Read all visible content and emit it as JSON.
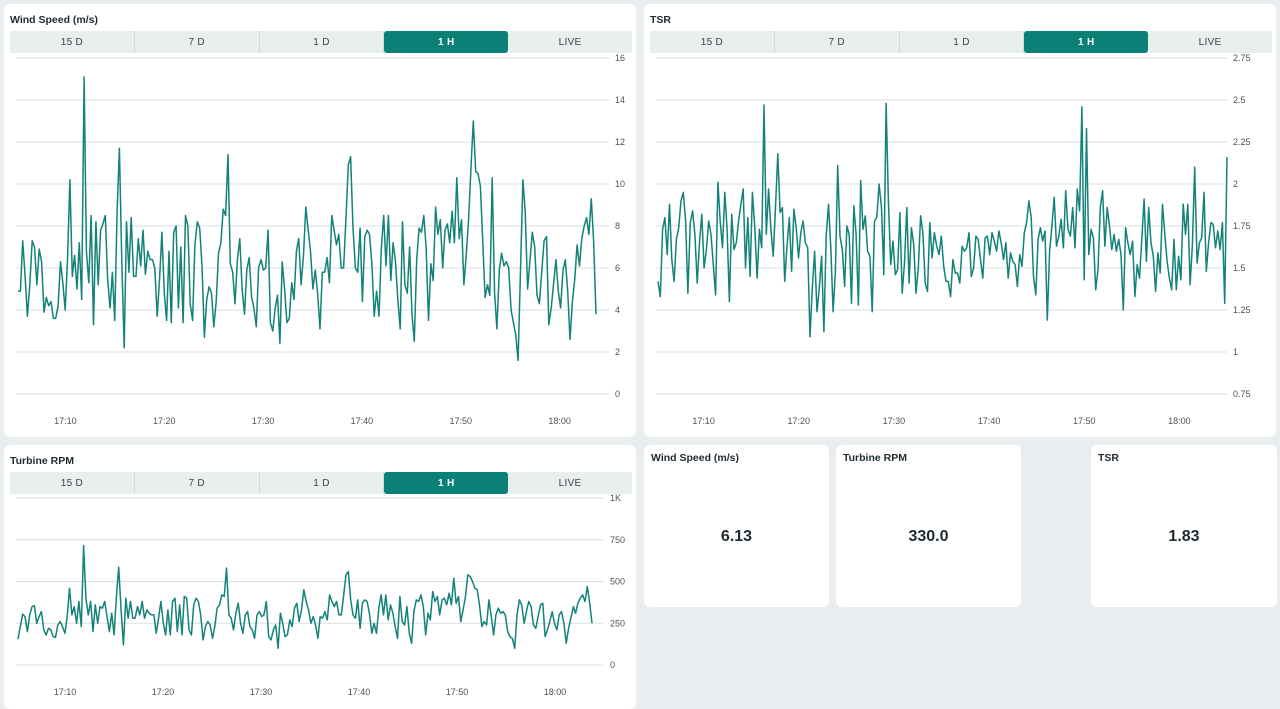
{
  "colors": {
    "accent": "#0a8077",
    "line": "#138278",
    "grid": "#d9dfe1",
    "background": "#e8eef0"
  },
  "tabs": [
    "15 D",
    "7 D",
    "1 D",
    "1 H",
    "LIVE"
  ],
  "active_tab": "1 H",
  "charts": {
    "wind": {
      "title": "Wind Speed (m/s)"
    },
    "tsr": {
      "title": "TSR"
    },
    "rpm": {
      "title": "Turbine RPM"
    }
  },
  "metrics": [
    {
      "title": "Wind Speed (m/s)",
      "value": "6.13"
    },
    {
      "title": "Turbine RPM",
      "value": "330.0"
    },
    {
      "title": "TSR",
      "value": "1.83"
    }
  ],
  "chart_data": [
    {
      "type": "line",
      "title": "Wind Speed (m/s)",
      "x_ticks": [
        "17:10",
        "17:20",
        "17:30",
        "17:40",
        "17:50",
        "18:00"
      ],
      "x_range_minutes": [
        1025,
        1085
      ],
      "y_ticks": [
        "0",
        "2",
        "4",
        "6",
        "8",
        "10",
        "12",
        "14",
        "16"
      ],
      "ylim": [
        0,
        16
      ],
      "grid": true,
      "series": [
        {
          "values": [
            4.9,
            4.9,
            7.3,
            5.6,
            3.7,
            5.2,
            7.3,
            7.0,
            5.2,
            6.9,
            6.3,
            3.9,
            4.6,
            4.2,
            4.4,
            3.6,
            3.6,
            4.2,
            6.3,
            5.3,
            4.0,
            6.4,
            10.2,
            5.6,
            6.6,
            5.0,
            7.2,
            4.5,
            15.1,
            6.8,
            5.3,
            8.5,
            3.3,
            8.2,
            5.2,
            7.8,
            8.1,
            8.5,
            5.5,
            4.1,
            5.8,
            3.5,
            8.7,
            11.7,
            6.3,
            2.2,
            8.2,
            5.8,
            8.4,
            5.6,
            5.6,
            7.4,
            6.1,
            7.8,
            5.7,
            6.8,
            6.4,
            6.4,
            6.0,
            3.7,
            5.5,
            7.7,
            4.8,
            3.5,
            6.8,
            3.4,
            7.7,
            8.0,
            4.1,
            7.0,
            3.4,
            8.5,
            8.0,
            4.3,
            3.5,
            7.1,
            8.2,
            7.9,
            6.1,
            2.7,
            4.5,
            5.1,
            4.8,
            3.2,
            4.4,
            6.7,
            7.2,
            8.8,
            8.5,
            11.4,
            6.2,
            5.8,
            4.3,
            6.4,
            7.4,
            5.0,
            3.8,
            5.9,
            6.5,
            4.6,
            4.1,
            3.2,
            6.0,
            6.4,
            5.9,
            6.0,
            7.8,
            3.4,
            3.0,
            4.1,
            4.7,
            2.4,
            6.3,
            5.0,
            3.4,
            3.6,
            5.3,
            4.5,
            6.8,
            7.4,
            5.2,
            6.6,
            8.9,
            7.8,
            6.8,
            5.0,
            5.9,
            4.8,
            3.1,
            5.8,
            5.8,
            6.5,
            5.3,
            8.5,
            7.8,
            7.1,
            7.6,
            6.0,
            6.0,
            8.3,
            10.9,
            11.3,
            7.9,
            6.0,
            5.8,
            7.9,
            4.4,
            7.5,
            7.8,
            7.6,
            6.2,
            3.7,
            4.9,
            3.7,
            6.9,
            8.5,
            6.1,
            8.5,
            5.4,
            7.2,
            6.3,
            4.5,
            3.1,
            8.2,
            5.2,
            4.8,
            7.0,
            3.8,
            2.5,
            6.4,
            7.9,
            7.7,
            8.5,
            7.0,
            3.5,
            6.2,
            5.4,
            8.9,
            7.6,
            8.3,
            6.0,
            7.8,
            8.1,
            7.2,
            8.7,
            7.2,
            10.3,
            7.4,
            8.3,
            5.2,
            6.6,
            8.3,
            10.8,
            13.0,
            10.6,
            10.5,
            9.9,
            7.2,
            4.6,
            5.2,
            4.7,
            10.3,
            4.8,
            3.1,
            5.9,
            6.7,
            6.1,
            6.3,
            6.0,
            4.0,
            3.4,
            2.8,
            1.6,
            5.9,
            10.2,
            8.7,
            5.0,
            6.3,
            7.7,
            7.0,
            4.7,
            4.3,
            5.8,
            7.3,
            7.5,
            3.3,
            4.1,
            5.2,
            6.4,
            4.9,
            4.1,
            5.9,
            6.4,
            4.9,
            2.6,
            4.4,
            5.5,
            7.1,
            6.1,
            7.4,
            8.0,
            8.4,
            7.6,
            9.3,
            7.3,
            3.8
          ]
        }
      ]
    },
    {
      "type": "line",
      "title": "TSR",
      "x_ticks": [
        "17:10",
        "17:20",
        "17:30",
        "17:40",
        "17:50",
        "18:00"
      ],
      "x_range_minutes": [
        1025,
        1085
      ],
      "y_ticks": [
        "0.75",
        "1",
        "1.25",
        "1.5",
        "1.75",
        "2",
        "2.25",
        "2.5",
        "2.75"
      ],
      "ylim": [
        0.75,
        2.75
      ],
      "grid": true,
      "series": [
        {
          "values": [
            1.42,
            1.33,
            1.73,
            1.8,
            1.58,
            1.88,
            1.55,
            1.42,
            1.67,
            1.74,
            1.9,
            1.95,
            1.78,
            1.35,
            1.77,
            1.84,
            1.7,
            1.41,
            1.65,
            1.82,
            1.5,
            1.61,
            1.78,
            1.7,
            1.52,
            1.34,
            2.01,
            1.78,
            1.62,
            1.95,
            1.73,
            1.3,
            1.82,
            1.61,
            1.65,
            1.78,
            1.88,
            1.97,
            1.5,
            1.8,
            1.45,
            1.95,
            1.74,
            1.44,
            1.73,
            1.62,
            2.47,
            1.7,
            1.97,
            1.73,
            1.57,
            1.86,
            2.18,
            1.83,
            1.86,
            1.42,
            1.63,
            1.8,
            1.48,
            1.85,
            1.74,
            1.56,
            1.71,
            1.78,
            1.65,
            1.62,
            1.09,
            1.38,
            1.6,
            1.24,
            1.38,
            1.57,
            1.12,
            1.69,
            1.88,
            1.62,
            1.24,
            1.48,
            2.11,
            1.69,
            1.61,
            1.39,
            1.75,
            1.7,
            1.29,
            1.87,
            1.7,
            1.28,
            2.02,
            1.73,
            1.81,
            1.6,
            1.57,
            1.24,
            1.78,
            1.8,
            2.0,
            1.86,
            1.46,
            2.48,
            1.9,
            1.52,
            1.66,
            1.46,
            1.49,
            1.83,
            1.35,
            1.53,
            1.86,
            1.41,
            1.74,
            1.64,
            1.35,
            1.5,
            1.81,
            1.71,
            1.41,
            1.36,
            1.77,
            1.56,
            1.71,
            1.63,
            1.58,
            1.69,
            1.51,
            1.42,
            1.42,
            1.33,
            1.55,
            1.47,
            1.47,
            1.41,
            1.63,
            1.6,
            1.62,
            1.71,
            1.45,
            1.5,
            1.69,
            1.67,
            1.55,
            1.44,
            1.68,
            1.69,
            1.58,
            1.71,
            1.66,
            1.6,
            1.72,
            1.65,
            1.55,
            1.65,
            1.44,
            1.59,
            1.54,
            1.52,
            1.39,
            1.58,
            1.51,
            1.71,
            1.77,
            1.9,
            1.8,
            1.45,
            1.34,
            1.67,
            1.74,
            1.66,
            1.72,
            1.19,
            1.6,
            1.75,
            1.92,
            1.63,
            1.69,
            1.79,
            1.62,
            1.96,
            1.73,
            1.69,
            1.86,
            1.62,
            1.97,
            1.84,
            2.46,
            1.43,
            2.33,
            1.58,
            1.73,
            1.68,
            1.37,
            1.49,
            1.86,
            1.96,
            1.63,
            1.86,
            1.75,
            1.61,
            1.7,
            1.6,
            1.67,
            1.58,
            1.25,
            1.74,
            1.65,
            1.58,
            1.66,
            1.33,
            1.52,
            1.44,
            1.67,
            1.91,
            1.54,
            1.86,
            1.65,
            1.57,
            1.36,
            1.59,
            1.47,
            1.88,
            1.7,
            1.54,
            1.44,
            1.37,
            1.67,
            1.37,
            1.57,
            1.43,
            1.88,
            1.7,
            1.88,
            1.4,
            1.64,
            2.1,
            1.53,
            1.65,
            1.68,
            1.95,
            1.48,
            1.65,
            1.77,
            1.76,
            1.62,
            1.72,
            1.61,
            1.77,
            1.29,
            2.16
          ]
        }
      ]
    },
    {
      "type": "line",
      "title": "Turbine RPM",
      "x_ticks": [
        "17:10",
        "17:20",
        "17:30",
        "17:40",
        "17:50",
        "18:00"
      ],
      "x_range_minutes": [
        1025,
        1085
      ],
      "y_ticks": [
        "0",
        "250",
        "500",
        "750",
        "1K"
      ],
      "ylim": [
        0,
        1000
      ],
      "grid": true,
      "series": [
        {
          "values": [
            155,
            230,
            305,
            290,
            200,
            300,
            350,
            355,
            250,
            290,
            320,
            210,
            180,
            220,
            210,
            170,
            165,
            240,
            260,
            230,
            190,
            290,
            460,
            300,
            350,
            250,
            380,
            230,
            715,
            400,
            300,
            380,
            200,
            360,
            250,
            350,
            340,
            380,
            290,
            200,
            310,
            180,
            410,
            585,
            330,
            120,
            400,
            280,
            380,
            280,
            280,
            350,
            300,
            380,
            280,
            330,
            310,
            300,
            300,
            190,
            280,
            380,
            250,
            180,
            330,
            180,
            380,
            400,
            200,
            360,
            180,
            410,
            400,
            210,
            180,
            360,
            400,
            380,
            300,
            150,
            230,
            260,
            240,
            160,
            230,
            340,
            360,
            420,
            410,
            580,
            300,
            280,
            210,
            310,
            370,
            250,
            190,
            300,
            320,
            230,
            210,
            160,
            300,
            320,
            290,
            300,
            380,
            170,
            150,
            210,
            240,
            100,
            310,
            250,
            170,
            180,
            270,
            230,
            340,
            370,
            260,
            330,
            450,
            380,
            330,
            250,
            290,
            240,
            160,
            290,
            280,
            320,
            270,
            420,
            380,
            350,
            380,
            300,
            300,
            420,
            540,
            560,
            390,
            300,
            280,
            390,
            220,
            370,
            390,
            380,
            310,
            190,
            250,
            190,
            340,
            420,
            300,
            420,
            270,
            360,
            310,
            230,
            160,
            410,
            260,
            240,
            350,
            190,
            130,
            320,
            390,
            380,
            420,
            350,
            180,
            310,
            270,
            440,
            380,
            410,
            300,
            390,
            400,
            360,
            430,
            360,
            520,
            370,
            410,
            260,
            330,
            410,
            540,
            530,
            500,
            460,
            450,
            360,
            230,
            260,
            240,
            390,
            290,
            180,
            300,
            340,
            310,
            320,
            300,
            200,
            170,
            160,
            100,
            300,
            390,
            360,
            250,
            320,
            380,
            350,
            240,
            220,
            290,
            360,
            370,
            170,
            210,
            260,
            320,
            250,
            210,
            300,
            320,
            250,
            130,
            220,
            280,
            350,
            310,
            370,
            400,
            420,
            380,
            470,
            370,
            250
          ]
        }
      ]
    }
  ]
}
